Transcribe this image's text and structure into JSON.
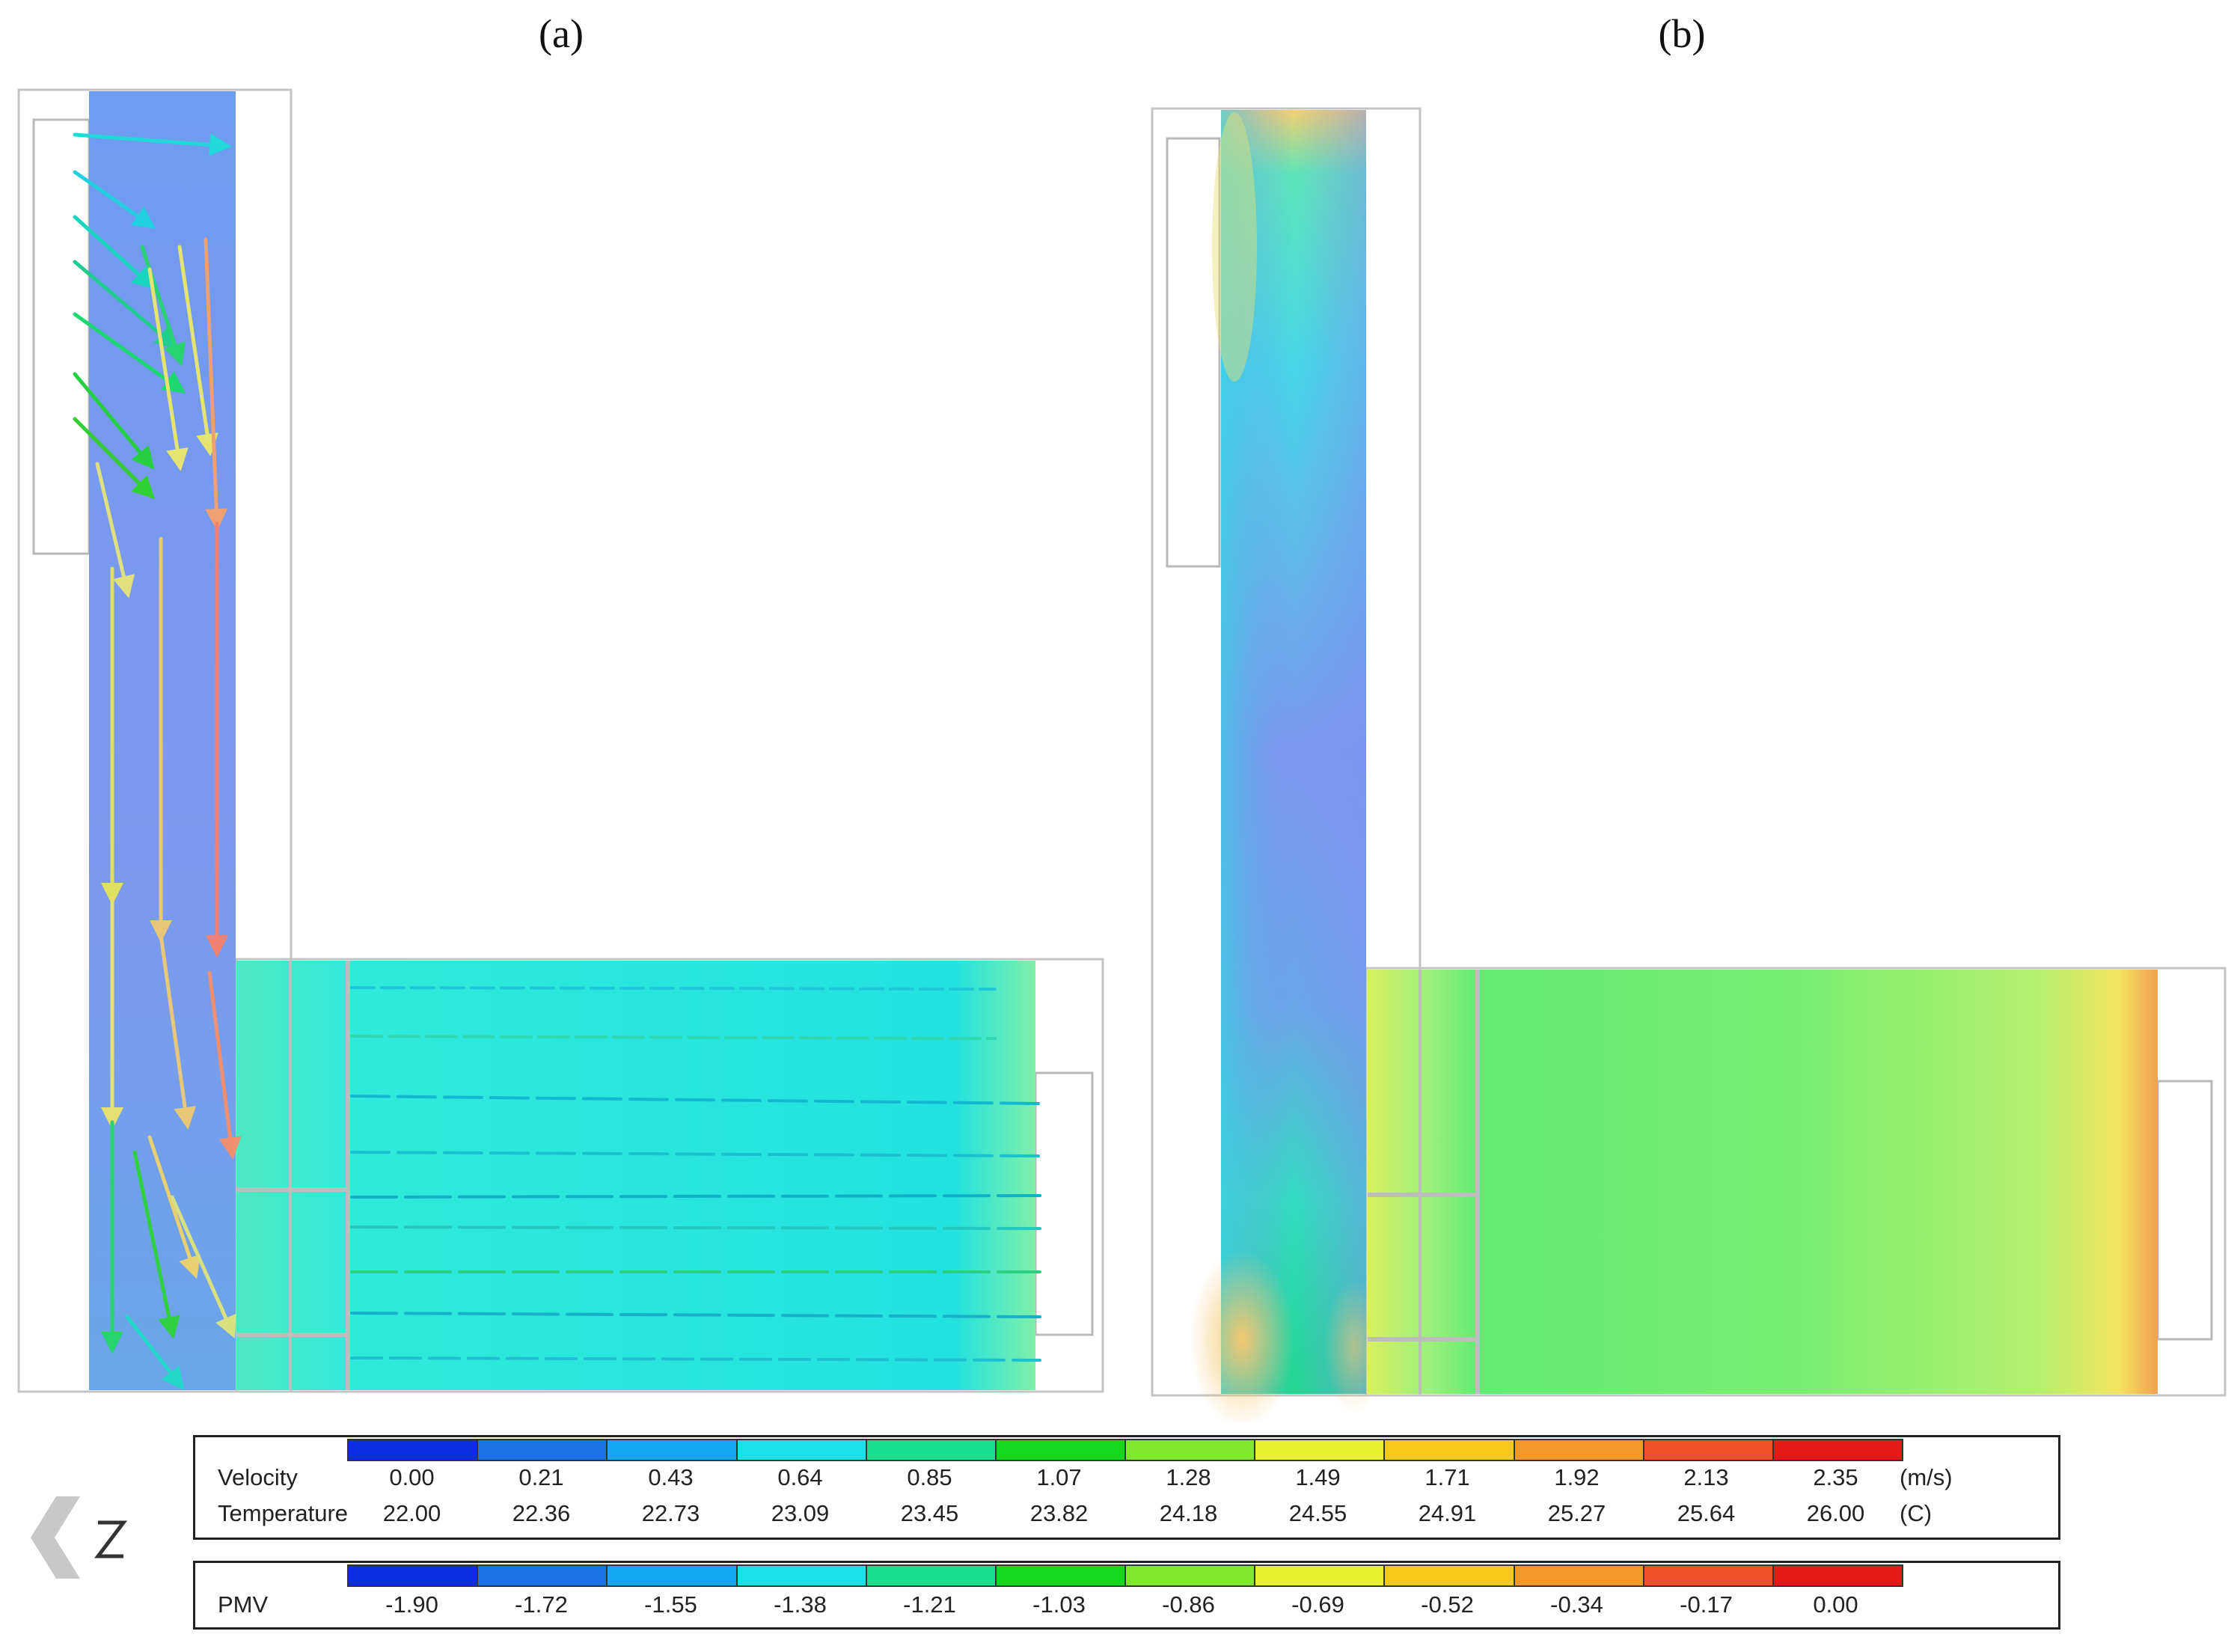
{
  "panels": [
    {
      "label": "(a)"
    },
    {
      "label": "(b)"
    }
  ],
  "colorbar_colors": [
    "#0b2fe0",
    "#1b73e8",
    "#14a8f0",
    "#1ae0e8",
    "#18e08c",
    "#14d81e",
    "#7ee82a",
    "#e8f030",
    "#f5c81a",
    "#f59828",
    "#f0502a",
    "#e81818"
  ],
  "legend1": {
    "velocity_label": "Velocity",
    "temperature_label": "Temperature",
    "velocity_values": [
      "0.00",
      "0.21",
      "0.43",
      "0.64",
      "0.85",
      "1.07",
      "1.28",
      "1.49",
      "1.71",
      "1.92",
      "2.13",
      "2.35"
    ],
    "velocity_unit": "(m/s)",
    "temperature_values": [
      "22.00",
      "22.36",
      "22.73",
      "23.09",
      "23.45",
      "23.82",
      "24.18",
      "24.55",
      "24.91",
      "25.27",
      "25.64",
      "26.00"
    ],
    "temperature_unit": "(C)"
  },
  "legend2": {
    "pmv_label": "PMV",
    "pmv_values": [
      "-1.90",
      "-1.72",
      "-1.55",
      "-1.38",
      "-1.21",
      "-1.03",
      "-0.86",
      "-0.69",
      "-0.52",
      "-0.34",
      "-0.17",
      "0.00"
    ]
  },
  "north_arrow": {
    "icon": "north-arrow-icon",
    "letter": "N"
  }
}
